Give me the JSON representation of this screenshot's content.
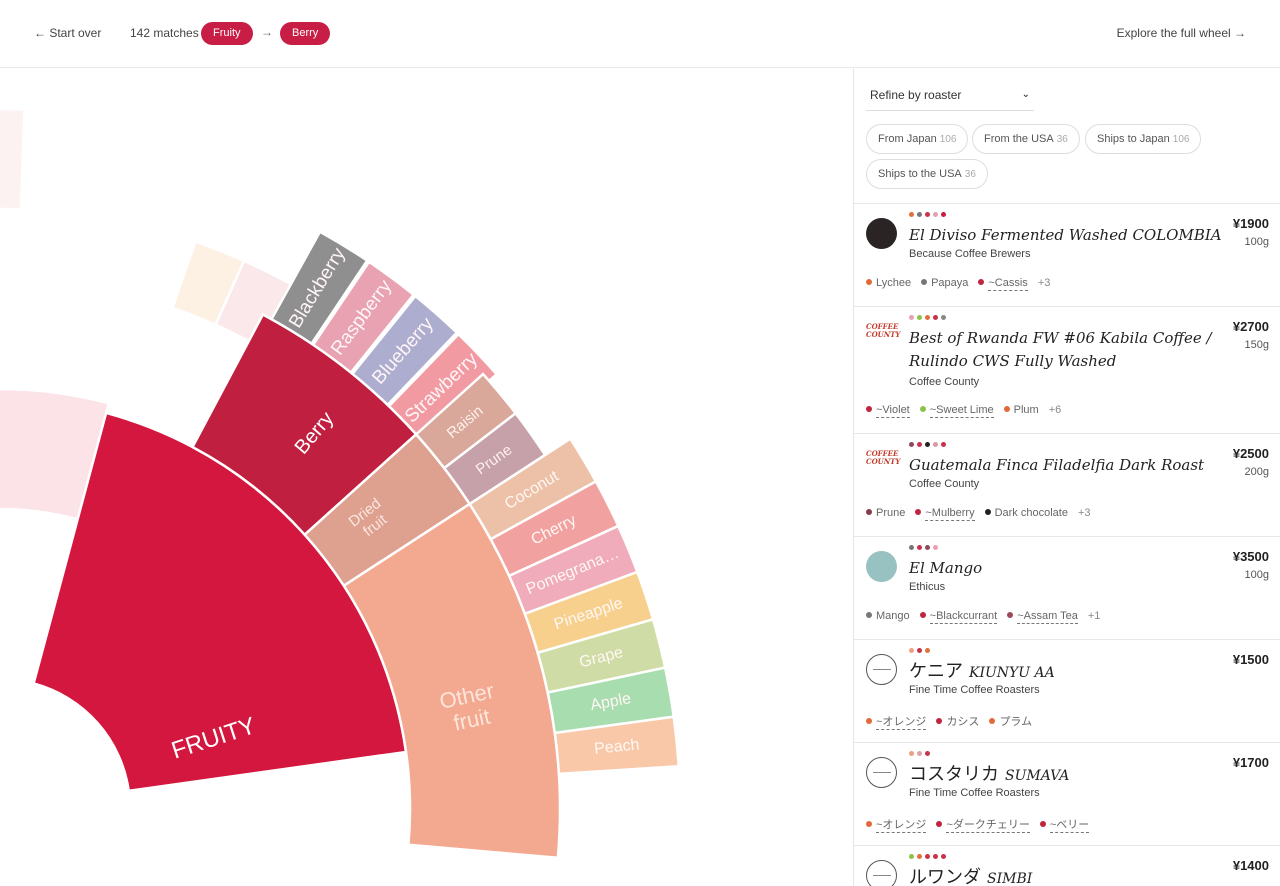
{
  "topbar": {
    "start_over": "← Start over",
    "matches": "142 matches",
    "crumbs": [
      "Fruity",
      "Berry"
    ],
    "crumb_sep": "→",
    "explore": "Explore the full wheel →"
  },
  "wheel": {
    "fruity": "FRUITY",
    "berry": "Berry",
    "dried_fruit": "Dried fruit",
    "other_fruit": "Other fruit",
    "berries": [
      "Blackberry",
      "Raspberry",
      "Blueberry",
      "Strawberry"
    ],
    "dried": [
      "Raisin",
      "Prune"
    ],
    "other": [
      "Coconut",
      "Cherry",
      "Pomegrana…",
      "Pineapple",
      "Grape",
      "Apple",
      "Peach"
    ],
    "colors": {
      "fruity": "#d3173f",
      "berry": "#c11f40",
      "dried_fruit": "#dea190",
      "other_fruit": "#f3a990",
      "blackberry": "#8f8f8f",
      "raspberry": "#e8a2b1",
      "blueberry": "#adadcf",
      "strawberry": "#f19aa1",
      "raisin": "#d9a89a",
      "prune": "#c6a1aa",
      "coconut": "#edc1a7",
      "cherry": "#f2a1a1",
      "pomegranate": "#f0acbb",
      "pineapple": "#f8d08d",
      "grape": "#cfdca5",
      "apple": "#a8ddaf",
      "peach": "#f8c8a8"
    }
  },
  "panel": {
    "refine_label": "Refine by roaster",
    "chips": [
      {
        "label": "From Japan",
        "count": "106"
      },
      {
        "label": "From the USA",
        "count": "36"
      },
      {
        "label": "Ships to Japan",
        "count": "106"
      },
      {
        "label": "Ships to the USA",
        "count": "36"
      }
    ],
    "products": [
      {
        "title": "El Diviso Fermented Washed COLOMBIA",
        "roaster": "Because Coffee Brewers",
        "price": "¥1900",
        "weight": "100g",
        "swatches": [
          "#e0713a",
          "#777777",
          "#c8324a",
          "#e2a0b0",
          "#c81d45"
        ],
        "notes": [
          {
            "label": "Lychee",
            "color": "#e06a3a",
            "dashed": false
          },
          {
            "label": "Papaya",
            "color": "#777777",
            "dashed": false
          },
          {
            "label": "~Cassis",
            "color": "#c0243f",
            "dashed": true
          }
        ],
        "more": "+3"
      },
      {
        "title": "Best of Rwanda FW #06 Kabila Coffee / Rulindo CWS Fully Washed",
        "roaster": "Coffee County",
        "price": "¥2700",
        "weight": "150g",
        "swatches": [
          "#e8a0b0",
          "#8bc34a",
          "#e0713a",
          "#c8324a",
          "#888888"
        ],
        "notes": [
          {
            "label": "~Violet",
            "color": "#c0243f",
            "dashed": true
          },
          {
            "label": "~Sweet Lime",
            "color": "#8bc34a",
            "dashed": true
          },
          {
            "label": "Plum",
            "color": "#e06a3a",
            "dashed": false
          }
        ],
        "more": "+6"
      },
      {
        "title": "Guatemala Finca Filadelfia Dark Roast",
        "roaster": "Coffee County",
        "price": "¥2500",
        "weight": "200g",
        "swatches": [
          "#8a4a5a",
          "#c8324a",
          "#222222",
          "#d89aa0",
          "#c8324a"
        ],
        "notes": [
          {
            "label": "Prune",
            "color": "#8a3a4a",
            "dashed": false
          },
          {
            "label": "~Mulberry",
            "color": "#c0243f",
            "dashed": true
          },
          {
            "label": "Dark chocolate",
            "color": "#222222",
            "dashed": false
          }
        ],
        "more": "+3"
      },
      {
        "title": "El Mango",
        "roaster": "Ethicus",
        "price": "¥3500",
        "weight": "100g",
        "swatches": [
          "#777777",
          "#c8324a",
          "#8a4a5a",
          "#e8a0b0"
        ],
        "notes": [
          {
            "label": "Mango",
            "color": "#777777",
            "dashed": false
          },
          {
            "label": "~Blackcurrant",
            "color": "#c0243f",
            "dashed": true
          },
          {
            "label": "~Assam Tea",
            "color": "#9a4a5a",
            "dashed": true
          }
        ],
        "more": "+1"
      },
      {
        "title": "ケニア",
        "title_latin": "KIUNYU AA",
        "roaster": "Fine Time Coffee Roasters",
        "price": "¥1500",
        "weight": "",
        "swatches": [
          "#f0a080",
          "#c8324a",
          "#e0713a"
        ],
        "notes": [
          {
            "label": "~オレンジ",
            "color": "#e06a3a",
            "dashed": true
          },
          {
            "label": "カシス",
            "color": "#c0243f",
            "dashed": false
          },
          {
            "label": "プラム",
            "color": "#e06a3a",
            "dashed": false
          }
        ],
        "more": ""
      },
      {
        "title": "コスタリカ",
        "title_latin": "SUMAVA",
        "roaster": "Fine Time Coffee Roasters",
        "price": "¥1700",
        "weight": "",
        "swatches": [
          "#e8a080",
          "#e0a0a8",
          "#c8324a"
        ],
        "notes": [
          {
            "label": "~オレンジ",
            "color": "#e06a3a",
            "dashed": true
          },
          {
            "label": "~ダークチェリー",
            "color": "#c0243f",
            "dashed": true
          },
          {
            "label": "~ベリー",
            "color": "#c0243f",
            "dashed": true
          }
        ],
        "more": ""
      },
      {
        "title": "ルワンダ",
        "title_latin": "SIMBI",
        "roaster": "",
        "price": "¥1400",
        "weight": "",
        "swatches": [
          "#8bc34a",
          "#e0713a",
          "#c8324a",
          "#c8324a",
          "#c8324a"
        ],
        "notes": [],
        "more": ""
      }
    ]
  }
}
